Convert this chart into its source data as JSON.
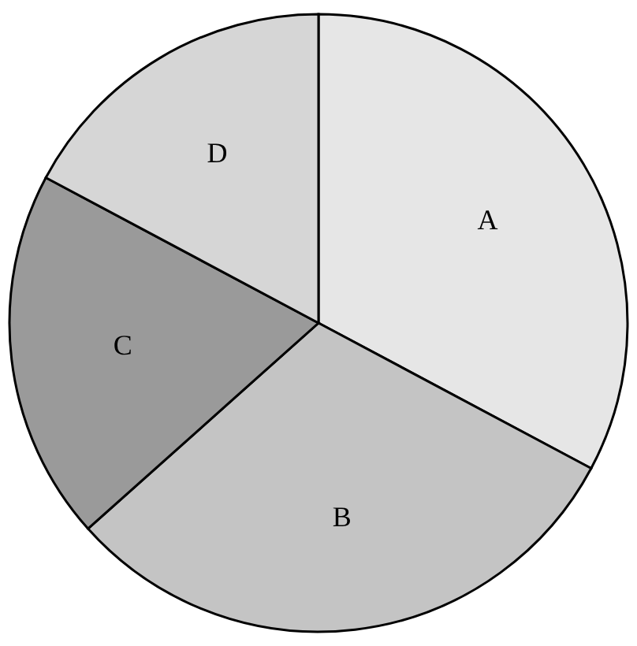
{
  "chart_data": {
    "type": "pie",
    "categories": [
      "A",
      "B",
      "C",
      "D"
    ],
    "values": [
      32.8,
      30.6,
      19.4,
      17.2
    ],
    "colors": [
      "#e6e6e6",
      "#c4c4c4",
      "#9a9a9a",
      "#d6d6d6"
    ]
  }
}
